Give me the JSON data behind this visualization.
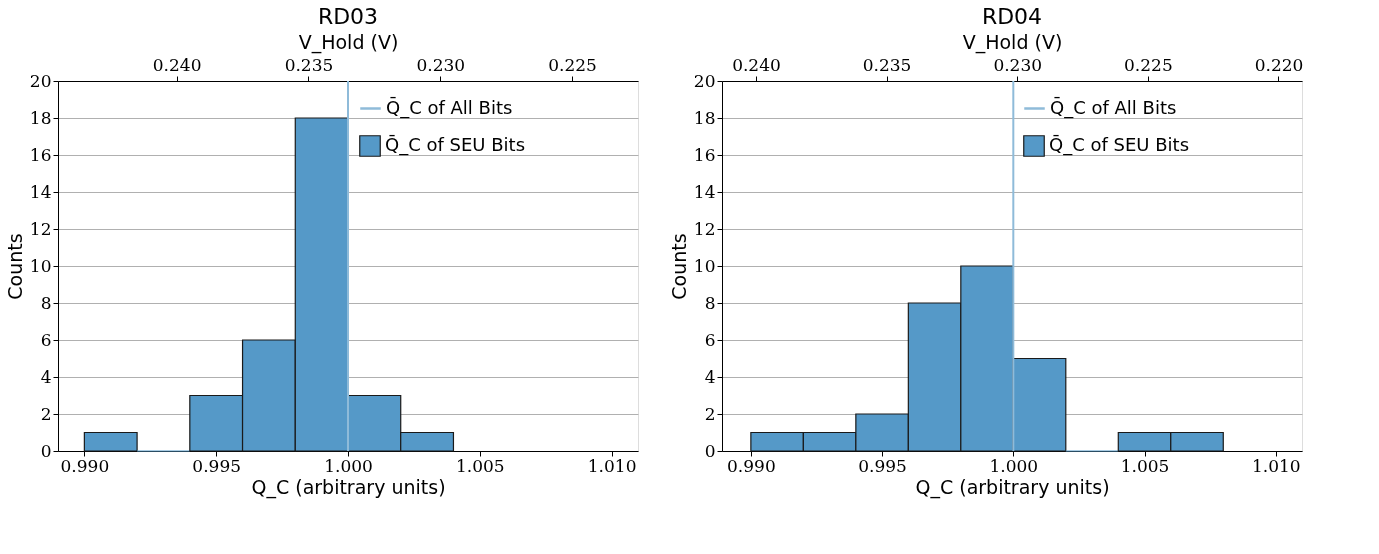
{
  "chart_data": [
    {
      "type": "histogram",
      "title": "RD03",
      "xlabel": "Q_C (arbitrary units)",
      "x2label": "V_Hold (V)",
      "ylabel": "Counts",
      "bins": [
        0.99,
        0.992,
        0.994,
        0.996,
        0.998,
        1.0,
        1.002,
        1.004
      ],
      "series": [
        {
          "name": "Q̄_C of SEU Bits",
          "color": "#5599c8",
          "values": [
            1,
            0,
            3,
            6,
            18,
            3,
            1
          ]
        }
      ],
      "ref_lines": [
        {
          "axis": "x",
          "value": 1.0,
          "label": "Q̄_C of All Bits",
          "color": "#8fbbd9"
        }
      ],
      "xlim": [
        0.989,
        1.011
      ],
      "xticks": [
        {
          "value": 0.99,
          "label": "0.990"
        },
        {
          "value": 0.995,
          "label": "0.995"
        },
        {
          "value": 1.0,
          "label": "1.000"
        },
        {
          "value": 1.005,
          "label": "1.005"
        },
        {
          "value": 1.01,
          "label": "1.010"
        }
      ],
      "x2lim": [
        0.2445,
        0.2225
      ],
      "x2ticks": [
        {
          "value": 0.24,
          "label": "0.240"
        },
        {
          "value": 0.235,
          "label": "0.235"
        },
        {
          "value": 0.23,
          "label": "0.230"
        },
        {
          "value": 0.225,
          "label": "0.225"
        }
      ],
      "ylim": [
        0,
        20
      ],
      "yticks": [
        0,
        2,
        4,
        6,
        8,
        10,
        12,
        14,
        16,
        18,
        20
      ],
      "grid": "y",
      "legend": "top right"
    },
    {
      "type": "histogram",
      "title": "RD04",
      "xlabel": "Q_C (arbitrary units)",
      "x2label": "V_Hold (V)",
      "ylabel": "Counts",
      "bins": [
        0.99,
        0.992,
        0.994,
        0.996,
        0.998,
        1.0,
        1.002,
        1.004,
        1.006,
        1.008
      ],
      "series": [
        {
          "name": "Q̄_C of SEU Bits",
          "color": "#5599c8",
          "values": [
            1,
            1,
            2,
            8,
            10,
            5,
            0,
            1,
            1
          ]
        }
      ],
      "ref_lines": [
        {
          "axis": "x",
          "value": 1.0,
          "label": "Q̄_C of All Bits",
          "color": "#8fbbd9"
        }
      ],
      "xlim": [
        0.9889,
        1.011
      ],
      "xticks": [
        {
          "value": 0.99,
          "label": "0.990"
        },
        {
          "value": 0.995,
          "label": "0.995"
        },
        {
          "value": 1.0,
          "label": "1.000"
        },
        {
          "value": 1.005,
          "label": "1.005"
        },
        {
          "value": 1.01,
          "label": "1.010"
        }
      ],
      "x2lim": [
        0.2413,
        0.2191
      ],
      "x2ticks": [
        {
          "value": 0.24,
          "label": "0.240"
        },
        {
          "value": 0.235,
          "label": "0.235"
        },
        {
          "value": 0.23,
          "label": "0.230"
        },
        {
          "value": 0.225,
          "label": "0.225"
        },
        {
          "value": 0.22,
          "label": "0.220"
        }
      ],
      "ylim": [
        0,
        20
      ],
      "yticks": [
        0,
        2,
        4,
        6,
        8,
        10,
        12,
        14,
        16,
        18,
        20
      ],
      "grid": "y",
      "legend": "top right"
    }
  ]
}
